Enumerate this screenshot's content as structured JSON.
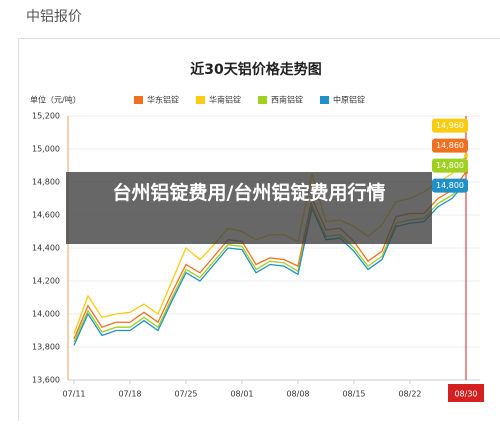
{
  "header": "中铝报价",
  "overlay": "台州铝锭费用/台州铝锭费用行情",
  "chart_data": {
    "type": "line",
    "title": "近30天铝价格走势图",
    "unit_label": "单位（元/吨）",
    "categories": [
      "07/11",
      null,
      null,
      null,
      "07/18",
      null,
      null,
      null,
      "07/25",
      null,
      null,
      null,
      "08/01",
      null,
      null,
      null,
      "08/08",
      null,
      null,
      null,
      "08/15",
      null,
      null,
      null,
      "08/22",
      null,
      null,
      null,
      "08/30"
    ],
    "series": [
      {
        "name": "华东铝锭",
        "color": "#f07020",
        "end_label": "14,860",
        "values": [
          13850,
          14050,
          13920,
          13950,
          13950,
          14010,
          13950,
          14130,
          14300,
          14250,
          14350,
          14450,
          14440,
          14300,
          14340,
          14330,
          14290,
          14700,
          14510,
          14520,
          14440,
          14320,
          14380,
          14590,
          14610,
          14610,
          14700,
          14750,
          14860
        ]
      },
      {
        "name": "华南铝锭",
        "color": "#f8cc10",
        "end_label": "14,960",
        "values": [
          13880,
          14110,
          13980,
          14000,
          14010,
          14060,
          14000,
          14200,
          14400,
          14330,
          14420,
          14520,
          14500,
          14450,
          14480,
          14480,
          14440,
          14850,
          14560,
          14570,
          14530,
          14470,
          14540,
          14680,
          14700,
          14740,
          14800,
          14850,
          14960
        ]
      },
      {
        "name": "西南铝锭",
        "color": "#a0d020",
        "end_label": "14,800",
        "values": [
          13830,
          14020,
          13890,
          13920,
          13920,
          13980,
          13920,
          14100,
          14270,
          14220,
          14320,
          14420,
          14410,
          14270,
          14320,
          14310,
          14260,
          14660,
          14470,
          14480,
          14400,
          14290,
          14350,
          14550,
          14570,
          14580,
          14670,
          14720,
          14800
        ]
      },
      {
        "name": "中原铝锭",
        "color": "#2090c8",
        "end_label": "14,800",
        "values": [
          13810,
          14000,
          13870,
          13900,
          13900,
          13960,
          13900,
          14080,
          14250,
          14200,
          14300,
          14400,
          14390,
          14250,
          14300,
          14290,
          14240,
          14640,
          14450,
          14460,
          14380,
          14270,
          14330,
          14530,
          14550,
          14560,
          14650,
          14700,
          14800
        ]
      }
    ],
    "ylim": [
      13600,
      15200
    ],
    "yticks": [
      {
        "value": 13600,
        "label": "13,600"
      },
      {
        "value": 13800,
        "label": "13,800"
      },
      {
        "value": 14000,
        "label": "14,000"
      },
      {
        "value": 14200,
        "label": "14,200"
      },
      {
        "value": 14400,
        "label": "14,400"
      },
      {
        "value": 14600,
        "label": "14,600"
      },
      {
        "value": 14800,
        "label": "14,800"
      },
      {
        "value": 15000,
        "label": "15,000"
      },
      {
        "value": 15200,
        "label": "15,200"
      }
    ],
    "grid": true,
    "highlight_color": "#d42020"
  }
}
